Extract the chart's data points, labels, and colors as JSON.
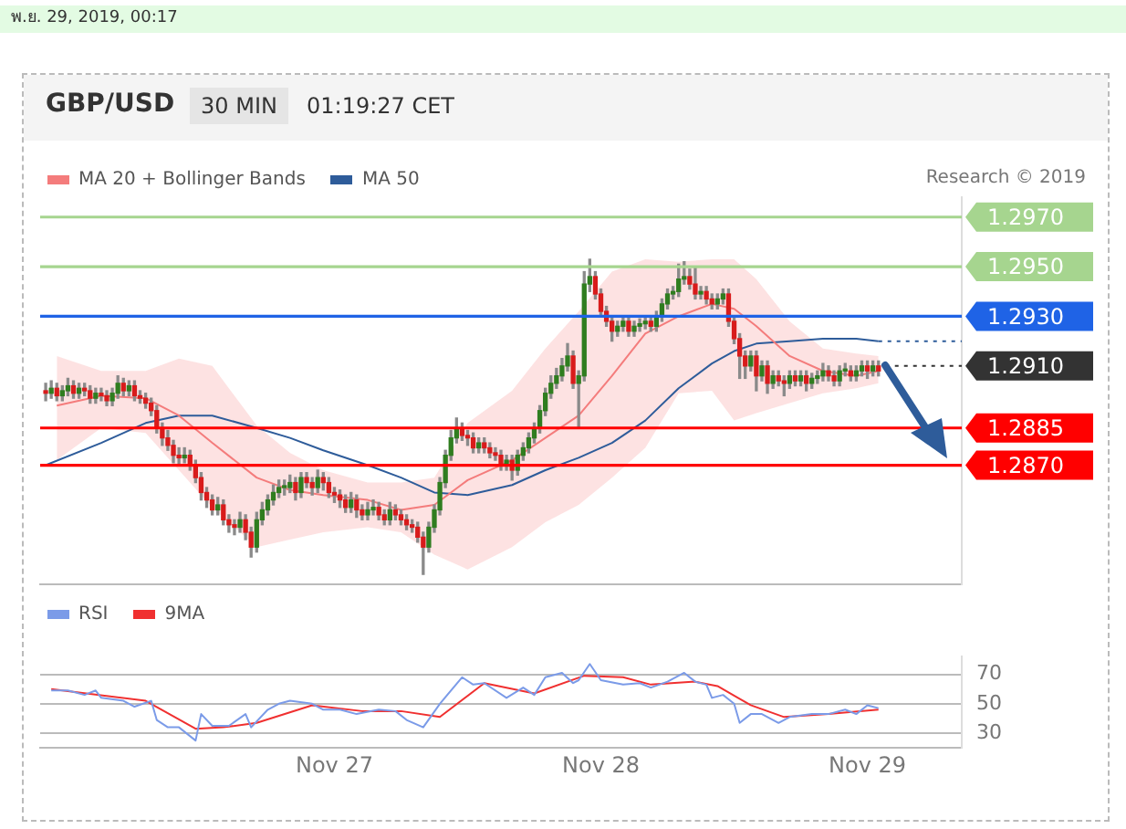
{
  "chart_data": [
    {
      "type": "candlestick",
      "title": "GBP/USD",
      "subtitle": "30 MIN",
      "annotations": [
        "พ.ย. 29, 2019, 00:17",
        "01:19:27 CET",
        "Research © 2019"
      ],
      "legend": "top left",
      "xlim": [
        "2019-11-25T21:30",
        "2019-11-29T08:30"
      ],
      "ylim": [
        1.2822,
        1.2978
      ],
      "ref_lines": [
        {
          "axis": "y",
          "value": 1.297,
          "label": "1.2970",
          "color": "#a6d58f"
        },
        {
          "axis": "y",
          "value": 1.295,
          "label": "1.2950",
          "color": "#a6d58f"
        },
        {
          "axis": "y",
          "value": 1.293,
          "label": "1.2930",
          "color": "#1f63e6"
        },
        {
          "axis": "y",
          "value": 1.291,
          "label": "1.2910",
          "color": "#333333",
          "line_style": "dotted"
        },
        {
          "axis": "y",
          "value": 1.2885,
          "label": "1.2885",
          "color": "#ff0000"
        },
        {
          "axis": "y",
          "value": 1.287,
          "label": "1.2870",
          "color": "#ff0000"
        }
      ],
      "series": [
        {
          "x": [
            "2019-11-25T22:00",
            "2019-11-25T22:30",
            "2019-11-25T23:00",
            "2019-11-25T23:30",
            "2019-11-26T00:00",
            "2019-11-26T00:30",
            "2019-11-26T01:00",
            "2019-11-26T01:30",
            "2019-11-26T02:00",
            "2019-11-26T02:30",
            "2019-11-26T03:00",
            "2019-11-26T03:30",
            "2019-11-26T04:00",
            "2019-11-26T04:30",
            "2019-11-26T05:00",
            "2019-11-26T05:30",
            "2019-11-26T06:00",
            "2019-11-26T06:30",
            "2019-11-26T07:00",
            "2019-11-26T07:30",
            "2019-11-26T08:00",
            "2019-11-26T08:30",
            "2019-11-26T09:00",
            "2019-11-26T09:30",
            "2019-11-26T10:00",
            "2019-11-26T10:30",
            "2019-11-26T11:00",
            "2019-11-26T11:30",
            "2019-11-26T12:00",
            "2019-11-26T12:30",
            "2019-11-26T13:00",
            "2019-11-26T13:30",
            "2019-11-26T14:00",
            "2019-11-26T14:30",
            "2019-11-26T15:00",
            "2019-11-26T15:30",
            "2019-11-26T16:00",
            "2019-11-26T16:30",
            "2019-11-26T17:00",
            "2019-11-26T17:30",
            "2019-11-26T18:00",
            "2019-11-26T18:30",
            "2019-11-26T19:00",
            "2019-11-26T19:30",
            "2019-11-26T20:00",
            "2019-11-26T20:30",
            "2019-11-26T21:00",
            "2019-11-26T21:30",
            "2019-11-26T22:00",
            "2019-11-26T22:30",
            "2019-11-26T23:00",
            "2019-11-26T23:30",
            "2019-11-27T00:00",
            "2019-11-27T00:30",
            "2019-11-27T01:00",
            "2019-11-27T01:30",
            "2019-11-27T02:00",
            "2019-11-27T02:30",
            "2019-11-27T03:00",
            "2019-11-27T03:30",
            "2019-11-27T04:00",
            "2019-11-27T04:30",
            "2019-11-27T05:00",
            "2019-11-27T05:30",
            "2019-11-27T06:00",
            "2019-11-27T06:30",
            "2019-11-27T07:00",
            "2019-11-27T07:30",
            "2019-11-27T08:00",
            "2019-11-27T08:30",
            "2019-11-27T09:00",
            "2019-11-27T09:30",
            "2019-11-27T10:00",
            "2019-11-27T10:30",
            "2019-11-27T11:00",
            "2019-11-27T11:30",
            "2019-11-27T12:00",
            "2019-11-27T12:30",
            "2019-11-27T13:00",
            "2019-11-27T13:30",
            "2019-11-27T14:00",
            "2019-11-27T14:30",
            "2019-11-27T15:00",
            "2019-11-27T15:30",
            "2019-11-27T16:00",
            "2019-11-27T16:30",
            "2019-11-27T17:00",
            "2019-11-27T17:30",
            "2019-11-27T18:00",
            "2019-11-27T18:30",
            "2019-11-27T19:00",
            "2019-11-27T19:30",
            "2019-11-27T20:00",
            "2019-11-27T20:30",
            "2019-11-27T21:00",
            "2019-11-27T21:30",
            "2019-11-27T22:00",
            "2019-11-27T22:30",
            "2019-11-27T23:00",
            "2019-11-27T23:30",
            "2019-11-28T00:00",
            "2019-11-28T00:30",
            "2019-11-28T01:00",
            "2019-11-28T01:30",
            "2019-11-28T02:00",
            "2019-11-28T02:30",
            "2019-11-28T03:00",
            "2019-11-28T03:30",
            "2019-11-28T04:00",
            "2019-11-28T04:30",
            "2019-11-28T05:00",
            "2019-11-28T05:30",
            "2019-11-28T06:00",
            "2019-11-28T06:30",
            "2019-11-28T07:00",
            "2019-11-28T07:30",
            "2019-11-28T08:00",
            "2019-11-28T08:30",
            "2019-11-28T09:00",
            "2019-11-28T09:30",
            "2019-11-28T10:00",
            "2019-11-28T10:30",
            "2019-11-28T11:00",
            "2019-11-28T11:30",
            "2019-11-28T12:00",
            "2019-11-28T12:30",
            "2019-11-28T13:00",
            "2019-11-28T13:30",
            "2019-11-28T14:00",
            "2019-11-28T14:30",
            "2019-11-28T15:00",
            "2019-11-28T15:30",
            "2019-11-28T16:00",
            "2019-11-28T16:30",
            "2019-11-28T17:00",
            "2019-11-28T17:30",
            "2019-11-28T18:00",
            "2019-11-28T18:30",
            "2019-11-28T19:00",
            "2019-11-28T19:30",
            "2019-11-28T20:00",
            "2019-11-28T20:30",
            "2019-11-28T21:00",
            "2019-11-28T21:30",
            "2019-11-28T22:00",
            "2019-11-28T22:30",
            "2019-11-28T23:00",
            "2019-11-28T23:30",
            "2019-11-29T00:00",
            "2019-11-29T00:30",
            "2019-11-29T01:00"
          ],
          "ohlc": [
            [
              1.29,
              1.2903,
              1.2896,
              1.2899
            ],
            [
              1.2899,
              1.2904,
              1.2897,
              1.2901
            ],
            [
              1.2901,
              1.2903,
              1.2896,
              1.2898
            ],
            [
              1.2898,
              1.2902,
              1.2896,
              1.29
            ],
            [
              1.29,
              1.2905,
              1.2898,
              1.2902
            ],
            [
              1.2902,
              1.2904,
              1.2897,
              1.2899
            ],
            [
              1.2899,
              1.2903,
              1.2897,
              1.2901
            ],
            [
              1.2901,
              1.2903,
              1.2898,
              1.29
            ],
            [
              1.29,
              1.2902,
              1.2895,
              1.2897
            ],
            [
              1.2897,
              1.2901,
              1.2895,
              1.2899
            ],
            [
              1.2899,
              1.2901,
              1.2896,
              1.2898
            ],
            [
              1.2898,
              1.29,
              1.2894,
              1.2896
            ],
            [
              1.2896,
              1.2901,
              1.2894,
              1.2899
            ],
            [
              1.2899,
              1.2906,
              1.2897,
              1.2903
            ],
            [
              1.2903,
              1.2905,
              1.2898,
              1.29
            ],
            [
              1.29,
              1.2904,
              1.2898,
              1.2902
            ],
            [
              1.2902,
              1.2904,
              1.2896,
              1.2898
            ],
            [
              1.2898,
              1.29,
              1.2895,
              1.2897
            ],
            [
              1.2897,
              1.2899,
              1.2893,
              1.2895
            ],
            [
              1.2895,
              1.2897,
              1.289,
              1.2892
            ],
            [
              1.2892,
              1.2894,
              1.2883,
              1.2885
            ],
            [
              1.2885,
              1.2887,
              1.2878,
              1.2881
            ],
            [
              1.2881,
              1.2884,
              1.2876,
              1.2878
            ],
            [
              1.2878,
              1.288,
              1.2871,
              1.2874
            ],
            [
              1.2874,
              1.2877,
              1.287,
              1.2873
            ],
            [
              1.2873,
              1.2877,
              1.2871,
              1.2874
            ],
            [
              1.2874,
              1.2876,
              1.2868,
              1.287
            ],
            [
              1.287,
              1.2872,
              1.2863,
              1.2865
            ],
            [
              1.2865,
              1.2867,
              1.2856,
              1.2859
            ],
            [
              1.2859,
              1.2861,
              1.2853,
              1.2856
            ],
            [
              1.2856,
              1.2858,
              1.285,
              1.2852
            ],
            [
              1.2852,
              1.2857,
              1.285,
              1.2854
            ],
            [
              1.2854,
              1.2856,
              1.2846,
              1.2848
            ],
            [
              1.2848,
              1.285,
              1.2843,
              1.2846
            ],
            [
              1.2846,
              1.2848,
              1.2842,
              1.2845
            ],
            [
              1.2845,
              1.2851,
              1.2843,
              1.2848
            ],
            [
              1.2848,
              1.285,
              1.284,
              1.2843
            ],
            [
              1.2843,
              1.2845,
              1.2833,
              1.2837
            ],
            [
              1.2837,
              1.2851,
              1.2835,
              1.2848
            ],
            [
              1.2848,
              1.2855,
              1.2846,
              1.2852
            ],
            [
              1.2852,
              1.2858,
              1.285,
              1.2856
            ],
            [
              1.2856,
              1.2862,
              1.2854,
              1.2859
            ],
            [
              1.2859,
              1.2864,
              1.2857,
              1.2861
            ],
            [
              1.2861,
              1.2864,
              1.2858,
              1.2861
            ],
            [
              1.2861,
              1.2866,
              1.2859,
              1.2863
            ],
            [
              1.2863,
              1.2865,
              1.2856,
              1.2859
            ],
            [
              1.2859,
              1.2867,
              1.2857,
              1.2865
            ],
            [
              1.2865,
              1.2867,
              1.2861,
              1.2863
            ],
            [
              1.2863,
              1.2865,
              1.2858,
              1.2861
            ],
            [
              1.2861,
              1.2868,
              1.2859,
              1.2865
            ],
            [
              1.2865,
              1.2867,
              1.286,
              1.2863
            ],
            [
              1.2863,
              1.2865,
              1.2857,
              1.2859
            ],
            [
              1.2859,
              1.2861,
              1.2855,
              1.2858
            ],
            [
              1.2858,
              1.286,
              1.2853,
              1.2856
            ],
            [
              1.2856,
              1.2858,
              1.2851,
              1.2853
            ],
            [
              1.2853,
              1.2859,
              1.2851,
              1.2856
            ],
            [
              1.2856,
              1.2858,
              1.2849,
              1.2852
            ],
            [
              1.2852,
              1.2854,
              1.2848,
              1.285
            ],
            [
              1.285,
              1.2855,
              1.2848,
              1.2852
            ],
            [
              1.2852,
              1.2856,
              1.285,
              1.2853
            ],
            [
              1.2853,
              1.2855,
              1.2848,
              1.285
            ],
            [
              1.285,
              1.2852,
              1.2846,
              1.2848
            ],
            [
              1.2848,
              1.2855,
              1.2846,
              1.2852
            ],
            [
              1.2852,
              1.2854,
              1.2848,
              1.285
            ],
            [
              1.285,
              1.2852,
              1.2846,
              1.2848
            ],
            [
              1.2848,
              1.285,
              1.2844,
              1.2846
            ],
            [
              1.2846,
              1.2848,
              1.2843,
              1.2845
            ],
            [
              1.2845,
              1.2847,
              1.2839,
              1.2841
            ],
            [
              1.2841,
              1.2843,
              1.2826,
              1.2837
            ],
            [
              1.2837,
              1.2847,
              1.2835,
              1.2845
            ],
            [
              1.2845,
              1.2854,
              1.2843,
              1.2852
            ],
            [
              1.2852,
              1.2865,
              1.285,
              1.2863
            ],
            [
              1.2863,
              1.2876,
              1.2861,
              1.2874
            ],
            [
              1.2874,
              1.2884,
              1.2872,
              1.2881
            ],
            [
              1.2881,
              1.2889,
              1.2879,
              1.2885
            ],
            [
              1.2885,
              1.2887,
              1.288,
              1.2882
            ],
            [
              1.2882,
              1.2884,
              1.2878,
              1.2881
            ],
            [
              1.2881,
              1.2883,
              1.2875,
              1.2877
            ],
            [
              1.2877,
              1.2881,
              1.2875,
              1.2879
            ],
            [
              1.2879,
              1.2881,
              1.2875,
              1.2877
            ],
            [
              1.2877,
              1.2879,
              1.2873,
              1.2875
            ],
            [
              1.2875,
              1.2877,
              1.2872,
              1.2874
            ],
            [
              1.2874,
              1.2876,
              1.2868,
              1.287
            ],
            [
              1.287,
              1.2874,
              1.2868,
              1.2872
            ],
            [
              1.2872,
              1.2874,
              1.2864,
              1.2868
            ],
            [
              1.2868,
              1.2876,
              1.2866,
              1.2874
            ],
            [
              1.2874,
              1.2879,
              1.2872,
              1.2877
            ],
            [
              1.2877,
              1.2883,
              1.2875,
              1.2881
            ],
            [
              1.2881,
              1.2887,
              1.2879,
              1.2885
            ],
            [
              1.2885,
              1.2894,
              1.2883,
              1.2892
            ],
            [
              1.2892,
              1.2901,
              1.289,
              1.2899
            ],
            [
              1.2899,
              1.2906,
              1.2897,
              1.2903
            ],
            [
              1.2903,
              1.2909,
              1.2901,
              1.2906
            ],
            [
              1.2906,
              1.2913,
              1.2904,
              1.291
            ],
            [
              1.291,
              1.2919,
              1.2908,
              1.2914
            ],
            [
              1.2914,
              1.2916,
              1.2901,
              1.2903
            ],
            [
              1.2903,
              1.2908,
              1.2885,
              1.2906
            ],
            [
              1.2906,
              1.2948,
              1.2904,
              1.2943
            ],
            [
              1.2943,
              1.2953,
              1.294,
              1.2946
            ],
            [
              1.2946,
              1.2948,
              1.2937,
              1.2939
            ],
            [
              1.2939,
              1.2941,
              1.293,
              1.2932
            ],
            [
              1.2932,
              1.2934,
              1.2926,
              1.2928
            ],
            [
              1.2928,
              1.293,
              1.292,
              1.2924
            ],
            [
              1.2924,
              1.2928,
              1.2922,
              1.2926
            ],
            [
              1.2926,
              1.293,
              1.2924,
              1.2928
            ],
            [
              1.2928,
              1.293,
              1.2922,
              1.2924
            ],
            [
              1.2924,
              1.2928,
              1.2922,
              1.2926
            ],
            [
              1.2926,
              1.2929,
              1.2924,
              1.2927
            ],
            [
              1.2927,
              1.293,
              1.2925,
              1.2928
            ],
            [
              1.2928,
              1.293,
              1.2924,
              1.2926
            ],
            [
              1.2926,
              1.2932,
              1.2924,
              1.293
            ],
            [
              1.293,
              1.2937,
              1.2928,
              1.2935
            ],
            [
              1.2935,
              1.2941,
              1.2933,
              1.2939
            ],
            [
              1.2939,
              1.2942,
              1.2937,
              1.294
            ],
            [
              1.294,
              1.2951,
              1.2938,
              1.2945
            ],
            [
              1.2945,
              1.2952,
              1.2943,
              1.2946
            ],
            [
              1.2946,
              1.2949,
              1.2941,
              1.2943
            ],
            [
              1.2943,
              1.295,
              1.2937,
              1.2939
            ],
            [
              1.2939,
              1.2942,
              1.2937,
              1.294
            ],
            [
              1.294,
              1.2942,
              1.2935,
              1.2937
            ],
            [
              1.2937,
              1.2939,
              1.2933,
              1.2935
            ],
            [
              1.2935,
              1.2939,
              1.2933,
              1.2937
            ],
            [
              1.2937,
              1.2941,
              1.2935,
              1.2939
            ],
            [
              1.2939,
              1.2941,
              1.2926,
              1.2928
            ],
            [
              1.2928,
              1.293,
              1.2919,
              1.2921
            ],
            [
              1.2921,
              1.2923,
              1.2905,
              1.2914
            ],
            [
              1.2914,
              1.2916,
              1.2905,
              1.291
            ],
            [
              1.291,
              1.2916,
              1.2908,
              1.2914
            ],
            [
              1.2914,
              1.2916,
              1.29,
              1.2906
            ],
            [
              1.2906,
              1.2912,
              1.2904,
              1.291
            ],
            [
              1.291,
              1.2912,
              1.2899,
              1.2903
            ],
            [
              1.2903,
              1.2908,
              1.2901,
              1.2906
            ],
            [
              1.2906,
              1.2908,
              1.2902,
              1.2904
            ],
            [
              1.2904,
              1.2906,
              1.2898,
              1.2903
            ],
            [
              1.2903,
              1.2908,
              1.2901,
              1.2906
            ],
            [
              1.2906,
              1.2908,
              1.2902,
              1.2904
            ],
            [
              1.2904,
              1.2908,
              1.2902,
              1.2906
            ],
            [
              1.2906,
              1.2908,
              1.29,
              1.2903
            ],
            [
              1.2903,
              1.2907,
              1.2901,
              1.2905
            ],
            [
              1.2905,
              1.2908,
              1.2903,
              1.2906
            ],
            [
              1.2906,
              1.2911,
              1.2904,
              1.2908
            ],
            [
              1.2908,
              1.291,
              1.2904,
              1.2906
            ],
            [
              1.2906,
              1.2908,
              1.2902,
              1.2904
            ],
            [
              1.2904,
              1.291,
              1.2902,
              1.2908
            ],
            [
              1.2908,
              1.2911,
              1.2906,
              1.2908
            ],
            [
              1.2908,
              1.291,
              1.2904,
              1.2906
            ],
            [
              1.2906,
              1.291,
              1.2904,
              1.2908
            ],
            [
              1.2908,
              1.2912,
              1.2906,
              1.291
            ],
            [
              1.291,
              1.2912,
              1.2905,
              1.2908
            ],
            [
              1.2908,
              1.2912,
              1.2906,
              1.291
            ],
            [
              1.291,
              1.2912,
              1.2906,
              1.2908
            ]
          ]
        },
        {
          "type": "line",
          "name": "MA 20 + Bollinger Bands",
          "color": "#f47c7c",
          "x": [
            "2019-11-25T23:00",
            "2019-11-26T03:00",
            "2019-11-26T07:00",
            "2019-11-26T10:00",
            "2019-11-26T13:00",
            "2019-11-26T17:00",
            "2019-11-26T20:00",
            "2019-11-26T23:00",
            "2019-11-27T03:00",
            "2019-11-27T06:00",
            "2019-11-27T09:00",
            "2019-11-27T12:00",
            "2019-11-27T16:00",
            "2019-11-27T19:00",
            "2019-11-27T22:00",
            "2019-11-28T01:00",
            "2019-11-28T04:00",
            "2019-11-28T07:00",
            "2019-11-28T10:00",
            "2019-11-28T12:00",
            "2019-11-28T14:00",
            "2019-11-28T17:00",
            "2019-11-28T20:00",
            "2019-11-28T23:00",
            "2019-11-29T01:00"
          ],
          "values": [
            1.2894,
            1.2898,
            1.2897,
            1.289,
            1.2879,
            1.2865,
            1.286,
            1.2858,
            1.2856,
            1.2852,
            1.2854,
            1.2864,
            1.2872,
            1.2881,
            1.289,
            1.2906,
            1.2923,
            1.293,
            1.2935,
            1.2933,
            1.2926,
            1.2914,
            1.2908,
            1.2906,
            1.2908
          ],
          "lower": [
            1.2872,
            1.2885,
            1.2883,
            1.2868,
            1.2853,
            1.2837,
            1.284,
            1.2843,
            1.2845,
            1.2843,
            1.2834,
            1.2828,
            1.2837,
            1.2847,
            1.2854,
            1.2865,
            1.2877,
            1.2899,
            1.29,
            1.2888,
            1.2891,
            1.2895,
            1.2899,
            1.2901,
            1.2903
          ],
          "upper": [
            1.2914,
            1.2908,
            1.2908,
            1.2913,
            1.291,
            1.2886,
            1.2875,
            1.2868,
            1.2863,
            1.2863,
            1.2865,
            1.2887,
            1.29,
            1.2917,
            1.2932,
            1.2948,
            1.2953,
            1.2952,
            1.2953,
            1.2953,
            1.2945,
            1.2928,
            1.2917,
            1.2915,
            1.2914
          ]
        },
        {
          "type": "line",
          "name": "MA 50",
          "color": "#2e5c9a",
          "x": [
            "2019-11-25T22:00",
            "2019-11-26T03:00",
            "2019-11-26T07:00",
            "2019-11-26T10:00",
            "2019-11-26T13:00",
            "2019-11-26T17:00",
            "2019-11-26T20:00",
            "2019-11-26T23:00",
            "2019-11-27T03:00",
            "2019-11-27T06:00",
            "2019-11-27T09:00",
            "2019-11-27T12:00",
            "2019-11-27T16:00",
            "2019-11-27T19:00",
            "2019-11-27T22:00",
            "2019-11-28T01:00",
            "2019-11-28T04:00",
            "2019-11-28T07:00",
            "2019-11-28T10:00",
            "2019-11-28T12:00",
            "2019-11-28T14:00",
            "2019-11-28T17:00",
            "2019-11-28T20:00",
            "2019-11-28T23:00",
            "2019-11-29T01:00"
          ],
          "values": [
            1.287,
            1.2879,
            1.2887,
            1.289,
            1.289,
            1.2885,
            1.2881,
            1.2876,
            1.287,
            1.2865,
            1.2859,
            1.2858,
            1.2862,
            1.2868,
            1.2873,
            1.2879,
            1.2888,
            1.2901,
            1.2911,
            1.2916,
            1.2919,
            1.292,
            1.2921,
            1.2921,
            1.292
          ]
        },
        {
          "type": "line",
          "color": "#2e5c9a",
          "line_style": "dotted",
          "x": [
            "2019-11-29T01:00",
            "2019-11-29T08:30"
          ],
          "values": [
            1.292,
            1.292
          ]
        }
      ]
    },
    {
      "type": "line",
      "legend": "top left",
      "grid": "y",
      "xlim": [
        "2019-11-25T21:30",
        "2019-11-29T08:30"
      ],
      "ylim": [
        20,
        82
      ],
      "yticks": [
        30,
        50,
        70
      ],
      "xticks": [
        {
          "value": "2019-11-27T00:00",
          "label": "Nov 27"
        },
        {
          "value": "2019-11-28T00:00",
          "label": "Nov 28"
        },
        {
          "value": "2019-11-29T00:00",
          "label": "Nov 29"
        }
      ],
      "series": [
        {
          "name": "RSI",
          "color": "#7b9be8",
          "x": [
            "2019-11-25T22:30",
            "2019-11-26T00:00",
            "2019-11-26T01:30",
            "2019-11-26T02:30",
            "2019-11-26T03:00",
            "2019-11-26T05:00",
            "2019-11-26T06:00",
            "2019-11-26T07:30",
            "2019-11-26T08:00",
            "2019-11-26T09:00",
            "2019-11-26T10:00",
            "2019-11-26T11:30",
            "2019-11-26T12:00",
            "2019-11-26T13:00",
            "2019-11-26T14:30",
            "2019-11-26T16:00",
            "2019-11-26T16:30",
            "2019-11-26T18:00",
            "2019-11-26T19:00",
            "2019-11-26T20:00",
            "2019-11-26T22:00",
            "2019-11-26T23:00",
            "2019-11-27T00:30",
            "2019-11-27T02:00",
            "2019-11-27T04:00",
            "2019-11-27T05:30",
            "2019-11-27T06:30",
            "2019-11-27T08:00",
            "2019-11-27T09:30",
            "2019-11-27T11:30",
            "2019-11-27T12:30",
            "2019-11-27T13:30",
            "2019-11-27T15:30",
            "2019-11-27T17:00",
            "2019-11-27T18:00",
            "2019-11-27T19:00",
            "2019-11-27T20:30",
            "2019-11-27T21:30",
            "2019-11-27T22:00",
            "2019-11-27T23:00",
            "2019-11-28T00:00",
            "2019-11-28T02:00",
            "2019-11-28T03:30",
            "2019-11-28T04:30",
            "2019-11-28T06:00",
            "2019-11-28T07:30",
            "2019-11-28T08:30",
            "2019-11-28T09:30",
            "2019-11-28T10:00",
            "2019-11-28T11:00",
            "2019-11-28T12:00",
            "2019-11-28T12:30",
            "2019-11-28T13:30",
            "2019-11-28T14:30",
            "2019-11-28T16:00",
            "2019-11-28T17:00",
            "2019-11-28T19:00",
            "2019-11-28T20:30",
            "2019-11-28T22:00",
            "2019-11-28T23:00",
            "2019-11-29T00:00",
            "2019-11-29T01:00"
          ],
          "values": [
            59,
            59,
            56,
            59,
            54,
            52,
            48,
            52,
            39,
            34,
            34,
            25,
            43,
            35,
            35,
            43,
            34,
            46,
            50,
            52,
            50,
            46,
            46,
            43,
            46,
            45,
            39,
            34,
            50,
            68,
            63,
            64,
            54,
            61,
            56,
            68,
            71,
            64,
            66,
            77,
            66,
            63,
            64,
            61,
            65,
            71,
            65,
            63,
            54,
            56,
            50,
            37,
            43,
            43,
            37,
            41,
            43,
            43,
            46,
            43,
            49,
            47
          ]
        },
        {
          "name": "9MA",
          "color": "#f03030",
          "x": [
            "2019-11-25T22:30",
            "2019-11-26T07:00",
            "2019-11-26T11:30",
            "2019-11-26T14:00",
            "2019-11-26T17:00",
            "2019-11-26T22:00",
            "2019-11-27T02:30",
            "2019-11-27T06:00",
            "2019-11-27T09:30",
            "2019-11-27T13:30",
            "2019-11-27T18:00",
            "2019-11-27T22:30",
            "2019-11-28T02:00",
            "2019-11-28T04:30",
            "2019-11-28T08:30",
            "2019-11-28T10:30",
            "2019-11-28T13:30",
            "2019-11-28T16:30",
            "2019-11-28T20:30",
            "2019-11-29T01:00"
          ],
          "values": [
            60,
            52,
            33,
            34,
            37,
            49,
            45,
            45,
            41,
            64,
            57,
            69,
            68,
            63,
            65,
            62,
            49,
            41,
            43,
            46
          ]
        }
      ]
    }
  ]
}
